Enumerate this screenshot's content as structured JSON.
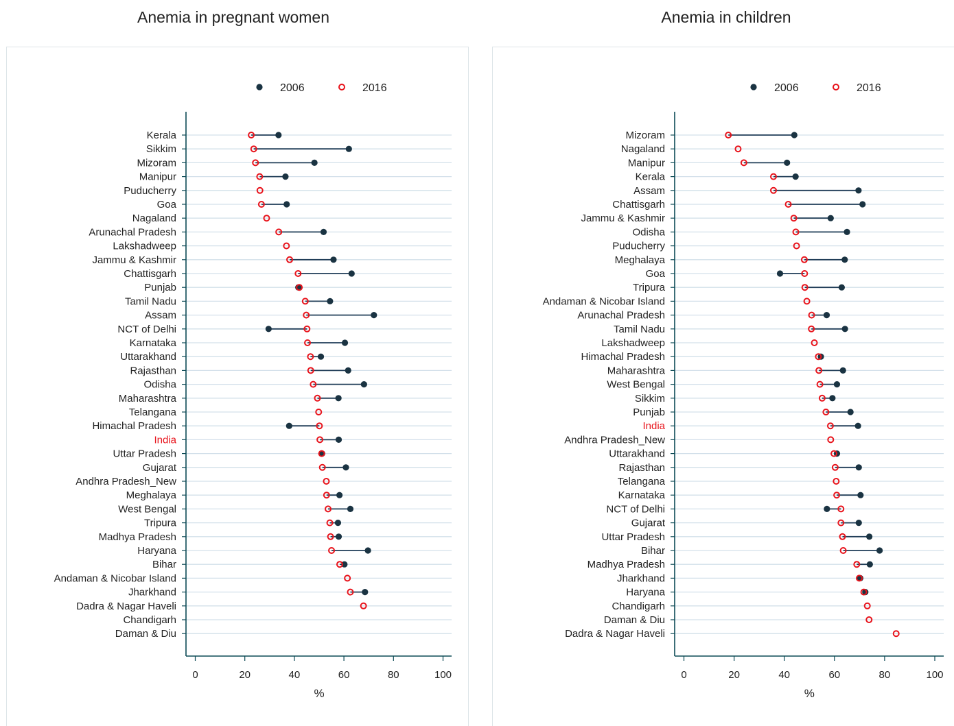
{
  "titles": {
    "left": "Anemia in pregnant women",
    "right": "Anemia in children"
  },
  "colors": {
    "series_2006": "#1a3342",
    "series_2016": "#e8141c",
    "connector": "#1f3c57",
    "gridline": "#d3e0ea",
    "axis": "#0c4a55",
    "highlight_label": "#e8141c"
  },
  "chart_data": [
    {
      "type": "dot-range",
      "title": "Anemia in pregnant women",
      "xlabel": "%",
      "ylabel": "",
      "xlim": [
        0,
        100
      ],
      "xticks": [
        0,
        20,
        40,
        60,
        80,
        100
      ],
      "grid": true,
      "legend": {
        "position": "top",
        "labels": [
          "2006",
          "2016"
        ]
      },
      "highlight_category": "India",
      "categories": [
        "Kerala",
        "Sikkim",
        "Mizoram",
        "Manipur",
        "Puducherry",
        "Goa",
        "Nagaland",
        "Arunachal Pradesh",
        "Lakshadweep",
        "Jammu & Kashmir",
        "Chattisgarh",
        "Punjab",
        "Tamil Nadu",
        "Assam",
        "NCT of Delhi",
        "Karnataka",
        "Uttarakhand",
        "Rajasthan",
        "Odisha",
        "Maharashtra",
        "Telangana",
        "Himachal Pradesh",
        "India",
        "Uttar Pradesh",
        "Gujarat",
        "Andhra Pradesh_New",
        "Meghalaya",
        "West Bengal",
        "Tripura",
        "Madhya Pradesh",
        "Haryana",
        "Bihar",
        "Andaman & Nicobar Island",
        "Jharkhand",
        "Dadra & Nagar Haveli",
        "Chandigarh",
        "Daman & Diu"
      ],
      "series": [
        {
          "name": "2006",
          "marker": "filled",
          "values": [
            33.6,
            62,
            48.1,
            36.4,
            null,
            36.9,
            null,
            51.8,
            null,
            55.8,
            63.1,
            41.6,
            54.4,
            72.1,
            29.6,
            60.4,
            50.7,
            61.7,
            68.1,
            57.8,
            null,
            37.9,
            57.9,
            51.2,
            60.8,
            null,
            58.2,
            62.6,
            57.6,
            57.9,
            69.7,
            60.2,
            null,
            68.5,
            null,
            null,
            null
          ]
        },
        {
          "name": "2016",
          "marker": "hollow",
          "values": [
            22.6,
            23.6,
            24.3,
            26,
            26.1,
            26.7,
            28.8,
            33.7,
            36.8,
            38.1,
            41.5,
            42,
            44.4,
            44.8,
            45.1,
            45.3,
            46.5,
            46.6,
            47.6,
            49.3,
            49.8,
            50.1,
            50.3,
            51,
            51.3,
            52.9,
            53,
            53.6,
            54.3,
            54.6,
            55,
            58.3,
            61.4,
            62.6,
            67.9,
            null,
            null
          ]
        }
      ]
    },
    {
      "type": "dot-range",
      "title": "Anemia in children",
      "xlabel": "%",
      "ylabel": "",
      "xlim": [
        0,
        100
      ],
      "xticks": [
        0,
        20,
        40,
        60,
        80,
        100
      ],
      "grid": true,
      "legend": {
        "position": "top",
        "labels": [
          "2006",
          "2016"
        ]
      },
      "highlight_category": "India",
      "categories": [
        "Mizoram",
        "Nagaland",
        "Manipur",
        "Kerala",
        "Assam",
        "Chattisgarh",
        "Jammu & Kashmir",
        "Odisha",
        "Puducherry",
        "Meghalaya",
        "Goa",
        "Tripura",
        "Andaman & Nicobar Island",
        "Arunachal Pradesh",
        "Tamil Nadu",
        "Lakshadweep",
        "Himachal Pradesh",
        "Maharashtra",
        "West Bengal",
        "Sikkim",
        "Punjab",
        "India",
        "Andhra Pradesh_New",
        "Uttarakhand",
        "Rajasthan",
        "Telangana",
        "Karnataka",
        "NCT of Delhi",
        "Gujarat",
        "Uttar Pradesh",
        "Bihar",
        "Madhya Pradesh",
        "Jharkhand",
        "Haryana",
        "Chandigarh",
        "Daman & Diu",
        "Dadra & Nagar Haveli"
      ],
      "series": [
        {
          "name": "2006",
          "marker": "filled",
          "values": [
            44,
            null,
            41.1,
            44.5,
            69.6,
            71.2,
            58.5,
            65,
            null,
            64.1,
            38.3,
            62.9,
            null,
            56.9,
            64.2,
            null,
            54.6,
            63.4,
            61,
            59.2,
            66.4,
            69.4,
            null,
            61,
            69.7,
            null,
            70.4,
            57,
            69.7,
            73.9,
            78,
            74.1,
            70.3,
            72.3,
            null,
            null,
            null
          ]
        },
        {
          "name": "2016",
          "marker": "hollow",
          "values": [
            17.7,
            21.6,
            23.9,
            35.7,
            35.7,
            41.6,
            43.8,
            44.6,
            44.9,
            48,
            48.1,
            48.2,
            49,
            50.9,
            50.8,
            52,
            53.6,
            53.8,
            54.2,
            55.1,
            56.6,
            58.4,
            58.5,
            59.8,
            60.3,
            60.7,
            60.9,
            62.6,
            62.6,
            63.2,
            63.5,
            68.9,
            69.9,
            71.7,
            73.1,
            73.8,
            84.6
          ]
        }
      ]
    }
  ]
}
